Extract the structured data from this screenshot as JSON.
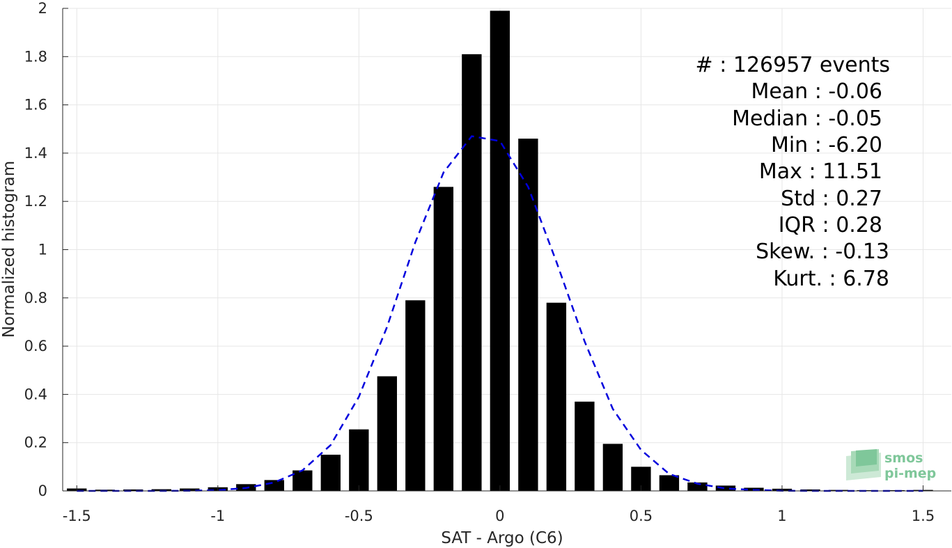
{
  "chart_data": {
    "type": "bar",
    "xlabel": "SAT - Argo (C6)",
    "ylabel": "Normalized histogram",
    "xlim": [
      -1.55,
      1.6
    ],
    "ylim": [
      0,
      2
    ],
    "grid": true,
    "x_ticks": [
      -1.5,
      -1,
      -0.5,
      0,
      0.5,
      1,
      1.5
    ],
    "x_tick_labels": [
      "-1.5",
      "-1",
      "-0.5",
      "0",
      "0.5",
      "1",
      "1.5"
    ],
    "y_ticks": [
      0,
      0.2,
      0.4,
      0.6,
      0.8,
      1,
      1.2,
      1.4,
      1.6,
      1.8,
      2
    ],
    "y_tick_labels": [
      "0",
      "0.2",
      "0.4",
      "0.6",
      "0.8",
      "1",
      "1.2",
      "1.4",
      "1.6",
      "1.8",
      "2"
    ],
    "bar_color": "#000000",
    "bar_width": 0.07,
    "bars": {
      "x": [
        -1.5,
        -1.4,
        -1.3,
        -1.2,
        -1.1,
        -1.0,
        -0.9,
        -0.8,
        -0.7,
        -0.6,
        -0.5,
        -0.4,
        -0.3,
        -0.2,
        -0.1,
        0.0,
        0.1,
        0.2,
        0.3,
        0.4,
        0.5,
        0.6,
        0.7,
        0.8,
        0.9,
        1.0,
        1.1,
        1.2,
        1.3,
        1.4,
        1.5
      ],
      "values": [
        0.01,
        0.005,
        0.006,
        0.007,
        0.01,
        0.015,
        0.028,
        0.045,
        0.085,
        0.15,
        0.255,
        0.475,
        0.79,
        1.26,
        1.81,
        1.99,
        1.46,
        0.78,
        0.37,
        0.195,
        0.1,
        0.065,
        0.035,
        0.022,
        0.013,
        0.009,
        0.006,
        0.004,
        0.003,
        0.003,
        0.004
      ]
    },
    "fit_curve": {
      "style": "dashed",
      "color": "#0000dd",
      "x": [
        -1.5,
        -1.4,
        -1.3,
        -1.2,
        -1.1,
        -1.0,
        -0.9,
        -0.8,
        -0.7,
        -0.6,
        -0.5,
        -0.4,
        -0.3,
        -0.2,
        -0.1,
        0.0,
        0.1,
        0.2,
        0.3,
        0.4,
        0.5,
        0.6,
        0.7,
        0.8,
        0.9,
        1.0,
        1.1,
        1.2,
        1.3,
        1.4,
        1.5
      ],
      "y": [
        0.0,
        0.0,
        0.0,
        0.0,
        0.001,
        0.003,
        0.012,
        0.035,
        0.085,
        0.19,
        0.39,
        0.68,
        1.03,
        1.32,
        1.47,
        1.45,
        1.26,
        0.95,
        0.62,
        0.34,
        0.17,
        0.07,
        0.03,
        0.01,
        0.004,
        0.001,
        0.0,
        0.0,
        0.0,
        0.0,
        0.0
      ]
    },
    "annotations": [
      "#  : 126957 events",
      "Mean : -0.06",
      "Median : -0.05",
      "Min : -6.20",
      "Max : 11.51",
      "Std : 0.27",
      "IQR : 0.28",
      "Skew. : -0.13",
      "Kurt. : 6.78"
    ]
  },
  "logo": {
    "line1": "smos",
    "line2": "pi-mep",
    "color": "#7fc79a"
  }
}
